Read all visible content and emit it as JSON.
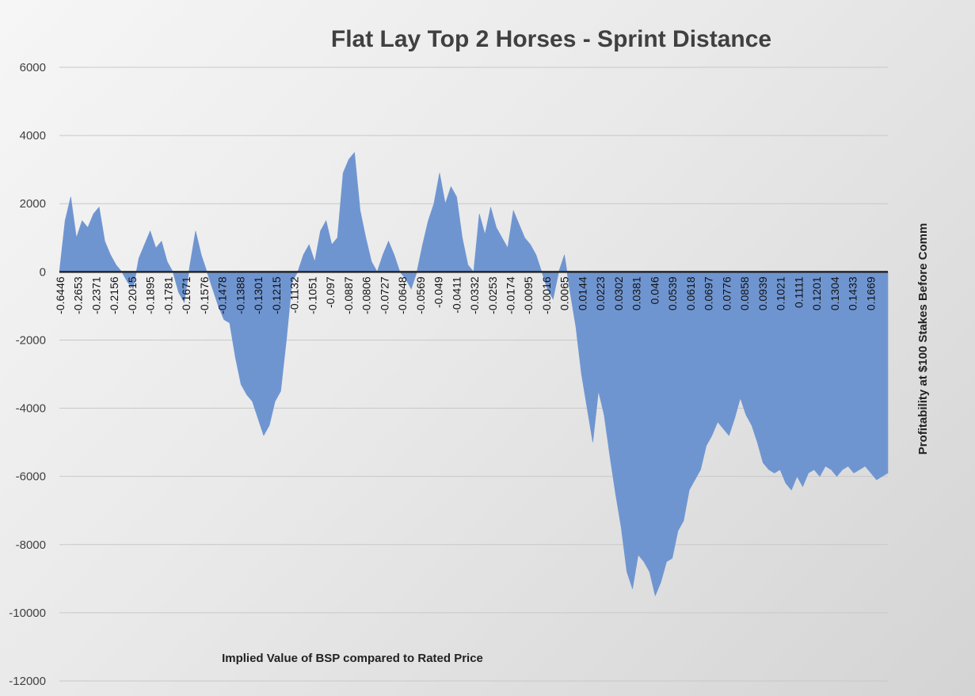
{
  "chart_data": {
    "type": "area",
    "title": "Flat Lay Top 2 Horses - Sprint Distance",
    "xlabel": "Implied Value of BSP compared to Rated Price",
    "ylabel": "Profitability at $100 Stakes Before Comm",
    "ylim": [
      -12000,
      6000
    ],
    "yticks": [
      6000,
      4000,
      2000,
      0,
      -2000,
      -4000,
      -6000,
      -8000,
      -10000,
      -12000
    ],
    "grid": true,
    "legend": "none",
    "fill_color": "#6f95d1",
    "zero_line_color": "#262626",
    "x_tick_labels": [
      "-0.6446",
      "-0.2653",
      "-0.2371",
      "-0.2156",
      "-0.2015",
      "-0.1895",
      "-0.1781",
      "-0.1671",
      "-0.1576",
      "-0.1478",
      "-0.1388",
      "-0.1301",
      "-0.1215",
      "-0.1132",
      "-0.1051",
      "-0.097",
      "-0.0887",
      "-0.0806",
      "-0.0727",
      "-0.0648",
      "-0.0569",
      "-0.049",
      "-0.0411",
      "-0.0332",
      "-0.0253",
      "-0.0174",
      "-0.0095",
      "-0.0016",
      "0.0065",
      "0.0144",
      "0.0223",
      "0.0302",
      "0.0381",
      "0.046",
      "0.0539",
      "0.0618",
      "0.0697",
      "0.0776",
      "0.0858",
      "0.0939",
      "0.1021",
      "0.1111",
      "0.1201",
      "0.1304",
      "0.1433",
      "0.1669"
    ],
    "series": [
      {
        "values": [
          0,
          1500,
          2200,
          1000,
          1500,
          1300,
          1700,
          1900,
          900,
          500,
          200,
          0,
          -300,
          -500,
          400,
          800,
          1200,
          700,
          900,
          300,
          0,
          -600,
          -900,
          200,
          1200,
          500,
          0,
          -500,
          -1000,
          -1400,
          -1500,
          -2500,
          -3300,
          -3600,
          -3800,
          -4300,
          -4800,
          -4500,
          -3800,
          -3500,
          -2000,
          -300,
          0,
          500,
          800,
          300,
          1200,
          1500,
          800,
          1000,
          2900,
          3300,
          3500,
          1800,
          1000,
          300,
          0,
          500,
          900,
          500,
          0,
          -200,
          -500,
          0,
          800,
          1500,
          2000,
          2900,
          2000,
          2500,
          2200,
          1000,
          200,
          0,
          1700,
          1100,
          1900,
          1300,
          1000,
          700,
          1800,
          1400,
          1000,
          800,
          500,
          0,
          -500,
          -800,
          0,
          500,
          -600,
          -1600,
          -3000,
          -4000,
          -5000,
          -3500,
          -4200,
          -5400,
          -6500,
          -7500,
          -8800,
          -9300,
          -8300,
          -8500,
          -8800,
          -9500,
          -9100,
          -8500,
          -8400,
          -7600,
          -7300,
          -6400,
          -6100,
          -5800,
          -5100,
          -4800,
          -4400,
          -4600,
          -4800,
          -4300,
          -3700,
          -4200,
          -4500,
          -5000,
          -5600,
          -5800,
          -5900,
          -5800,
          -6200,
          -6400,
          -6000,
          -6300,
          -5900,
          -5800,
          -6000,
          -5700,
          -5800,
          -6000,
          -5800,
          -5700,
          -5900,
          -5800,
          -5700,
          -5900,
          -6100,
          -6000,
          -5900
        ]
      }
    ]
  }
}
